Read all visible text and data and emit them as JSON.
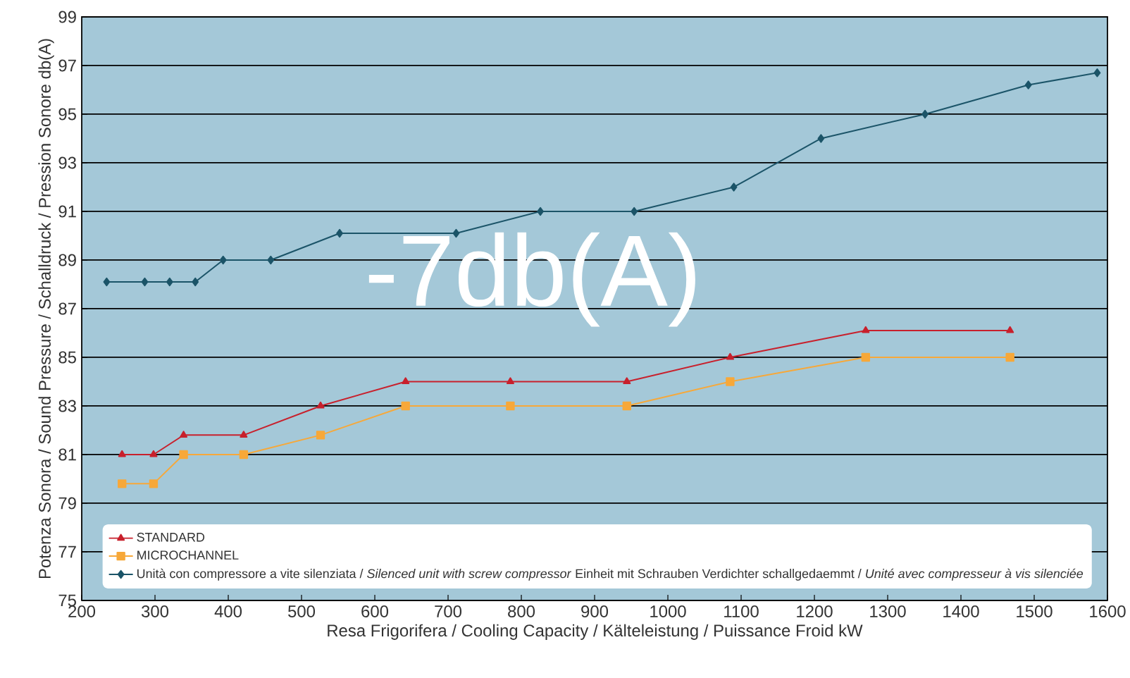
{
  "chart_data": {
    "type": "line",
    "xlabel": "Resa Frigorifera / Cooling Capacity / Kälteleistung / Puissance Froid kW",
    "ylabel": "Potenza Sonora / Sound Pressure / Schalldruck / Pression Sonore db(A)",
    "xlim": [
      200,
      1600
    ],
    "xticks": [
      200,
      300,
      400,
      500,
      600,
      700,
      800,
      900,
      1000,
      1100,
      1200,
      1300,
      1400,
      1500,
      1600
    ],
    "ylim": [
      75,
      99
    ],
    "yticks": [
      75,
      77,
      79,
      81,
      83,
      85,
      87,
      89,
      91,
      93,
      95,
      97,
      99
    ],
    "grid": "y",
    "legend": "bottom right",
    "annotations": [
      "-7db(A)"
    ],
    "series": [
      {
        "name": "STANDARD",
        "color": "#c8202c",
        "marker": "triangle",
        "x": [
          255,
          298,
          339,
          421,
          526,
          642,
          785,
          944,
          1085,
          1270,
          1467
        ],
        "values": [
          81.0,
          81.0,
          81.8,
          81.8,
          83.0,
          84.0,
          84.0,
          84.0,
          85.0,
          86.1,
          86.1
        ]
      },
      {
        "name": "MICROCHANNEL",
        "color": "#f7a839",
        "marker": "square",
        "x": [
          255,
          298,
          339,
          421,
          526,
          642,
          785,
          944,
          1085,
          1270,
          1467
        ],
        "values": [
          79.8,
          79.8,
          81.0,
          81.0,
          81.8,
          83.0,
          83.0,
          83.0,
          84.0,
          85.0,
          85.0
        ]
      },
      {
        "name": "Unità con compressore a vite silenziata / *Silenced unit with screw compressor* Einheit mit Schrauben Verdichter schallgedaemmt / *Unité avec compresseur à vis silenciée*",
        "color": "#1b5468",
        "marker": "diamond",
        "x": [
          234,
          286,
          320,
          355,
          393,
          458,
          552,
          711,
          826,
          954,
          1090,
          1209,
          1351,
          1492,
          1586
        ],
        "values": [
          88.1,
          88.1,
          88.1,
          88.1,
          89.0,
          89.0,
          90.1,
          90.1,
          91.0,
          91.0,
          92.0,
          94.0,
          95.0,
          96.2,
          96.7
        ]
      }
    ]
  }
}
